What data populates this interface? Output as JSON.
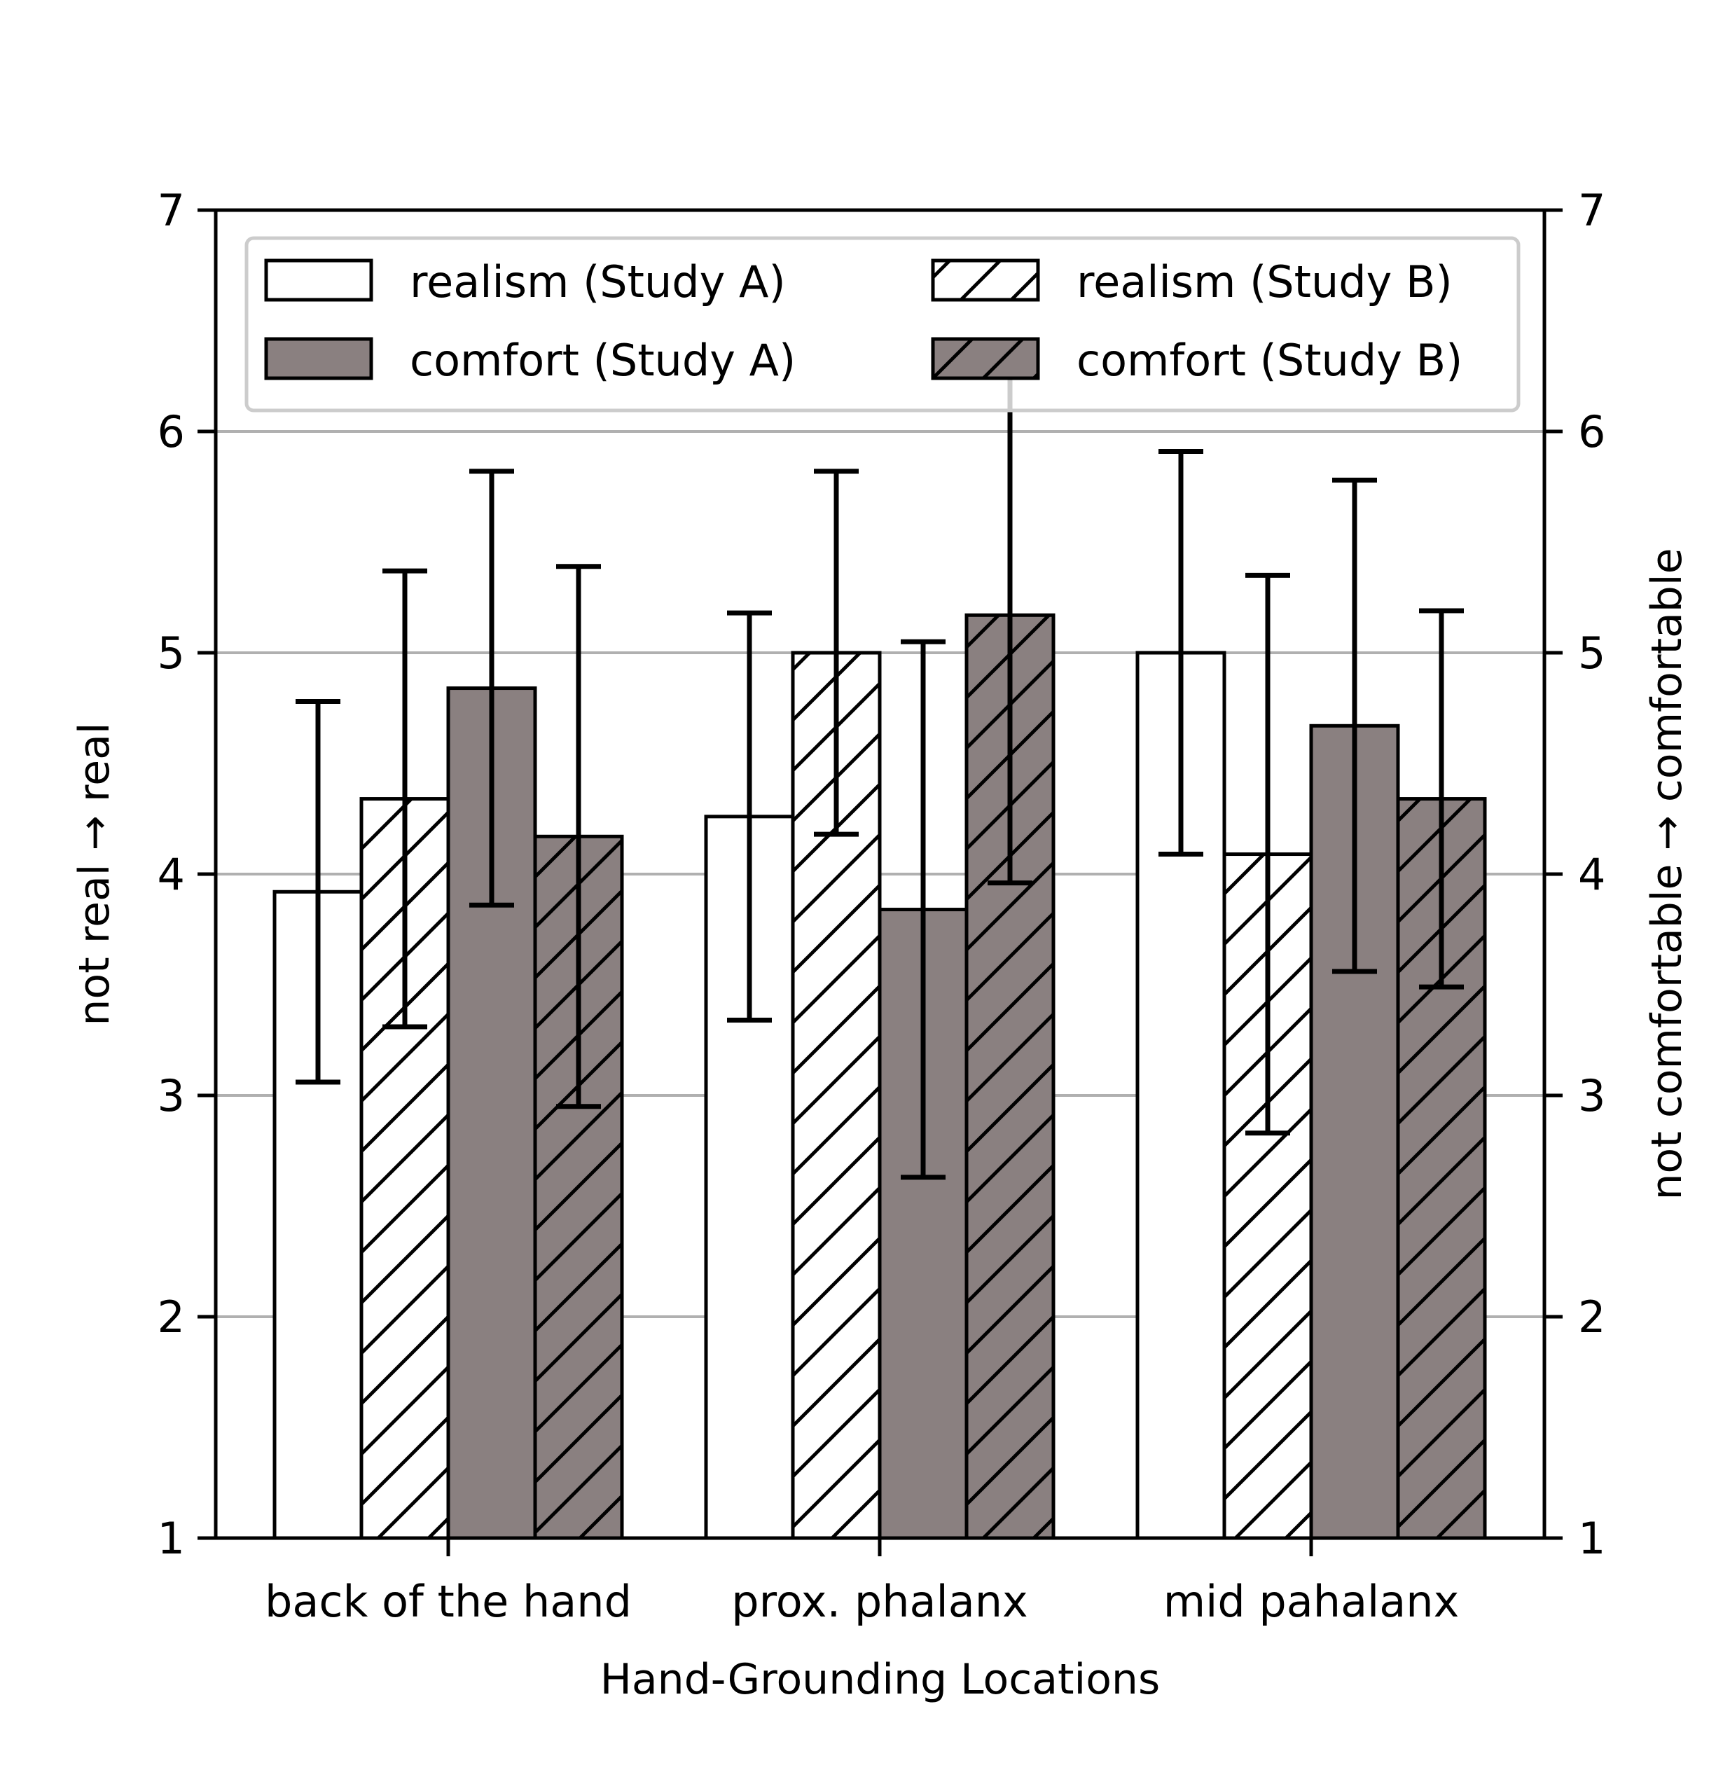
{
  "chart_data": {
    "type": "bar",
    "xlabel": "Hand-Grounding Locations",
    "ylabel": "not real → real",
    "ylabel_right": "not comfortable → comfortable",
    "categories": [
      "back of the hand",
      "prox.  phalanx",
      "mid pahalanx"
    ],
    "ylim": [
      1,
      7
    ],
    "yticks": [
      1,
      2,
      3,
      4,
      5,
      6,
      7
    ],
    "grid": "horizontal",
    "legend_position": "top",
    "series": [
      {
        "name": "realism  (Study A)",
        "fill": "#ffffff",
        "hatch": false,
        "values": [
          3.92,
          4.26,
          5.0
        ],
        "errors": [
          0.86,
          0.92,
          0.91
        ]
      },
      {
        "name": "realism  (Study B)",
        "fill": "#ffffff",
        "hatch": true,
        "values": [
          4.34,
          5.0,
          4.09
        ],
        "errors": [
          1.03,
          0.82,
          1.26
        ]
      },
      {
        "name": "comfort (Study A)",
        "fill": "#8a8080",
        "hatch": false,
        "values": [
          4.84,
          3.84,
          4.67
        ],
        "errors": [
          0.98,
          1.21,
          1.11
        ]
      },
      {
        "name": "comfort (Study B)",
        "fill": "#8a8080",
        "hatch": true,
        "values": [
          4.17,
          5.17,
          4.34
        ],
        "errors": [
          1.22,
          1.21,
          0.85
        ]
      }
    ]
  }
}
